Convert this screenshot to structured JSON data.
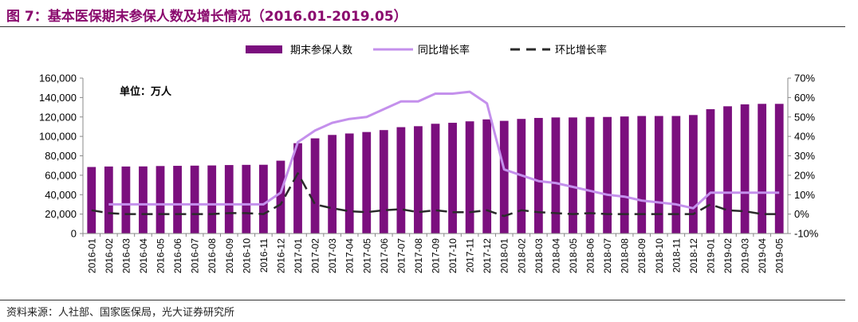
{
  "figure": {
    "title": "图 7：基本医保期末参保人数及增长情况（2016.01-2019.05）",
    "source": "资料来源：人社部、国家医保局，光大证券研究所"
  },
  "colors": {
    "bar": "#7b0f7e",
    "yoy_line": "#c490ec",
    "mom_line": "#2b2b2b",
    "title": "#8a0a6e"
  },
  "chart_data": {
    "type": "bar",
    "unit_note": "单位：万人",
    "categories": [
      "2016-01",
      "2016-02",
      "2016-03",
      "2016-04",
      "2016-05",
      "2016-06",
      "2016-07",
      "2016-08",
      "2016-09",
      "2016-10",
      "2016-11",
      "2016-12",
      "2017-01",
      "2017-02",
      "2017-03",
      "2017-04",
      "2017-05",
      "2017-06",
      "2017-07",
      "2017-08",
      "2017-09",
      "2017-10",
      "2017-11",
      "2017-12",
      "2018-01",
      "2018-02",
      "2018-03",
      "2018-04",
      "2018-05",
      "2018-06",
      "2018-07",
      "2018-08",
      "2018-09",
      "2018-10",
      "2018-11",
      "2018-12",
      "2019-01",
      "2019-02",
      "2019-03",
      "2019-04",
      "2019-05"
    ],
    "series": [
      {
        "name": "期末参保人数",
        "type": "bar",
        "axis": "left",
        "values": [
          68500,
          69000,
          69000,
          69100,
          69500,
          69700,
          69900,
          70100,
          70500,
          70700,
          70800,
          75000,
          93000,
          98000,
          101500,
          103000,
          104500,
          106500,
          109500,
          110500,
          113000,
          114000,
          115500,
          117500,
          116000,
          118000,
          119000,
          119500,
          119500,
          120000,
          120000,
          120500,
          121000,
          121000,
          121000,
          122000,
          128000,
          131000,
          133000,
          133500,
          133500
        ]
      },
      {
        "name": "同比增长率",
        "type": "line",
        "axis": "right",
        "values": [
          null,
          0.05,
          0.05,
          0.05,
          0.05,
          0.05,
          0.05,
          0.05,
          0.05,
          0.05,
          0.05,
          0.11,
          0.37,
          0.43,
          0.47,
          0.49,
          0.5,
          0.54,
          0.58,
          0.58,
          0.62,
          0.62,
          0.63,
          0.57,
          0.23,
          0.2,
          0.17,
          0.16,
          0.14,
          0.12,
          0.1,
          0.09,
          0.07,
          0.06,
          0.05,
          0.03,
          0.11,
          0.11,
          0.11,
          0.11,
          0.11
        ]
      },
      {
        "name": "环比增长率",
        "type": "line",
        "axis": "right",
        "values": [
          0.02,
          0.005,
          0.0,
          0.0,
          0.0,
          0.0,
          0.0,
          0.0,
          0.005,
          0.005,
          0.0,
          0.05,
          0.21,
          0.05,
          0.03,
          0.015,
          0.01,
          0.02,
          0.025,
          0.01,
          0.02,
          0.01,
          0.01,
          0.02,
          -0.01,
          0.02,
          0.01,
          0.005,
          0.0,
          0.005,
          0.0,
          0.0,
          0.0,
          0.0,
          0.0,
          0.0,
          0.05,
          0.02,
          0.015,
          0.0,
          0.0
        ]
      }
    ],
    "y_left": {
      "min": 0,
      "max": 160000,
      "step": 20000,
      "ticks": [
        "0",
        "20,000",
        "40,000",
        "60,000",
        "80,000",
        "100,000",
        "120,000",
        "140,000",
        "160,000"
      ]
    },
    "y_right": {
      "min": -0.1,
      "max": 0.7,
      "step": 0.1,
      "ticks": [
        "-10%",
        "0%",
        "10%",
        "20%",
        "30%",
        "40%",
        "50%",
        "60%",
        "70%"
      ]
    },
    "legend_position": "top",
    "grid": false
  }
}
